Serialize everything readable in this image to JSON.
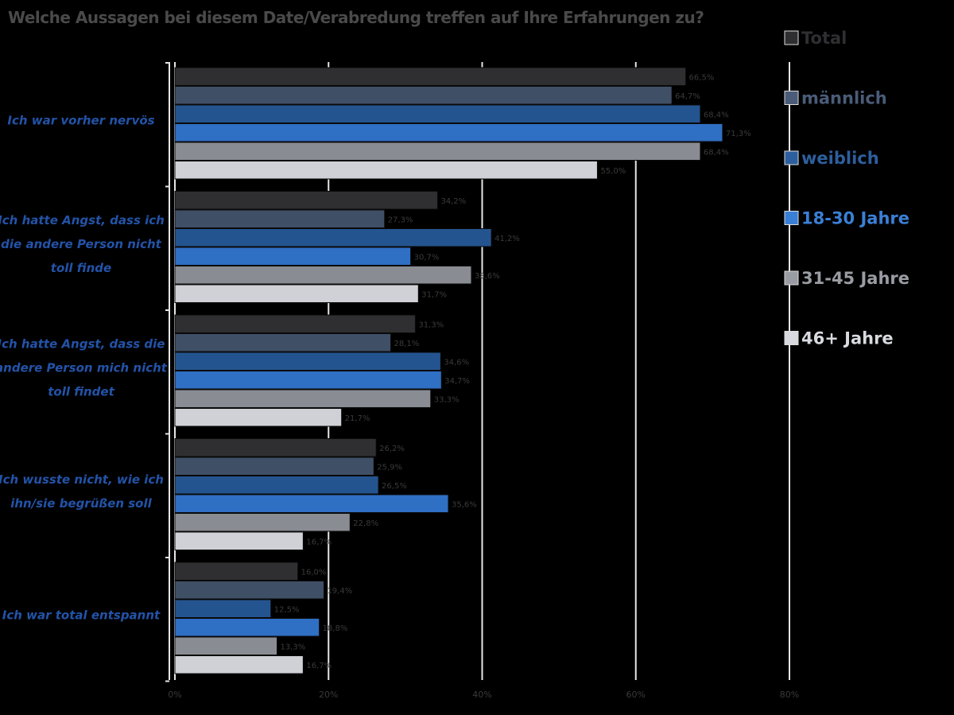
{
  "chart_data": {
    "type": "bar",
    "orientation": "horizontal",
    "title": "Welche Aussagen bei diesem Date/Verabredung treffen auf Ihre Erfahrungen zu?",
    "categories": [
      [
        "Ich war vorher nervös"
      ],
      [
        "Ich hatte Angst, dass ich",
        "die andere Person nicht",
        "toll finde"
      ],
      [
        "Ich hatte Angst, dass die",
        "andere Person mich nicht",
        "toll findet"
      ],
      [
        "Ich wusste nicht, wie ich",
        "ihn/sie begrüßen soll"
      ],
      [
        "Ich war total entspannt"
      ]
    ],
    "series": [
      {
        "name": "Total",
        "color": "#2f2f32",
        "legend_color": "#2f2f32",
        "values": [
          66.5,
          34.2,
          31.3,
          26.2,
          16.0
        ],
        "labels": [
          "66,5%",
          "34,2%",
          "31,3%",
          "26,2%",
          "16,0%"
        ]
      },
      {
        "name": "männlich",
        "color": "#3f4f66",
        "legend_color": "#4a5c78",
        "values": [
          64.7,
          27.3,
          28.1,
          25.9,
          19.4
        ],
        "labels": [
          "64,7%",
          "27,3%",
          "28,1%",
          "25,9%",
          "19,4%"
        ]
      },
      {
        "name": "weiblich",
        "color": "#24548f",
        "legend_color": "#2d5f9e",
        "values": [
          68.4,
          41.2,
          34.6,
          26.5,
          12.5
        ],
        "labels": [
          "68,4%",
          "41,2%",
          "34,6%",
          "26,5%",
          "12,5%"
        ]
      },
      {
        "name": "18-30 Jahre",
        "color": "#2f6fc4",
        "legend_color": "#3a7fd6",
        "values": [
          71.3,
          30.7,
          34.7,
          35.6,
          18.8
        ],
        "labels": [
          "71,3%",
          "30,7%",
          "34,7%",
          "35,6%",
          "18,8%"
        ]
      },
      {
        "name": "31-45 Jahre",
        "color": "#8a8c93",
        "legend_color": "#9a9ca3",
        "values": [
          68.4,
          38.6,
          33.3,
          22.8,
          13.3
        ],
        "labels": [
          "68,4%",
          "38,6%",
          "33,3%",
          "22,8%",
          "13,3%"
        ]
      },
      {
        "name": "46+ Jahre",
        "color": "#cfd1d6",
        "legend_color": "#d8dadf",
        "values": [
          55.0,
          31.7,
          21.7,
          16.7,
          16.7
        ],
        "labels": [
          "55,0%",
          "31,7%",
          "21,7%",
          "16,7%",
          "16,7%"
        ]
      }
    ],
    "xlim": [
      0,
      80
    ],
    "xticks": [
      0,
      20,
      40,
      60,
      80
    ],
    "xtick_labels": [
      "0%",
      "20%",
      "40%",
      "60%",
      "80%"
    ],
    "grid": true,
    "legend_position": "right"
  }
}
